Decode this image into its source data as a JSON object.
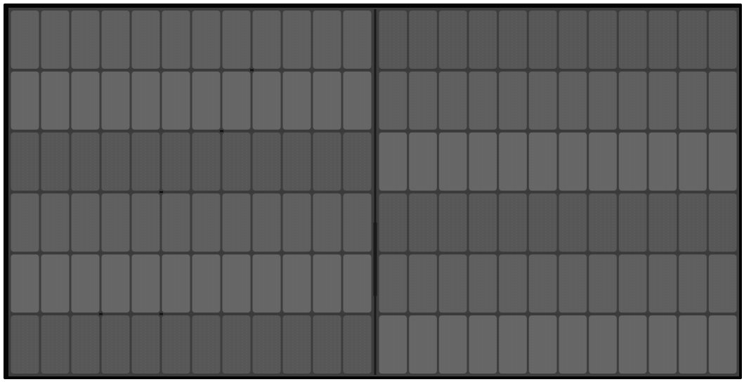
{
  "image": {
    "subject": "electroluminescence-image-of-solar-panel",
    "cell_rows": 6,
    "cells_per_half_row": 12,
    "halves": 2,
    "colors": {
      "frame": "#050505",
      "cell_base": "#5f5f5f",
      "cell_light": "#666666",
      "cell_dark": "#575757",
      "gap": "#3d3d3d",
      "center_bus": "#1a1a1a",
      "finger": "#6a6a6a",
      "defect": "#141414"
    },
    "defects": [
      {
        "row": 1,
        "col": 8,
        "kind": "crack-mark"
      },
      {
        "row": 2,
        "col": 7,
        "kind": "crack-mark"
      },
      {
        "row": 3,
        "col": 5,
        "kind": "crack-mark"
      },
      {
        "row": 5,
        "col": 3,
        "kind": "crack-mark"
      },
      {
        "row": 5,
        "col": 5,
        "kind": "crack-mark"
      }
    ]
  }
}
